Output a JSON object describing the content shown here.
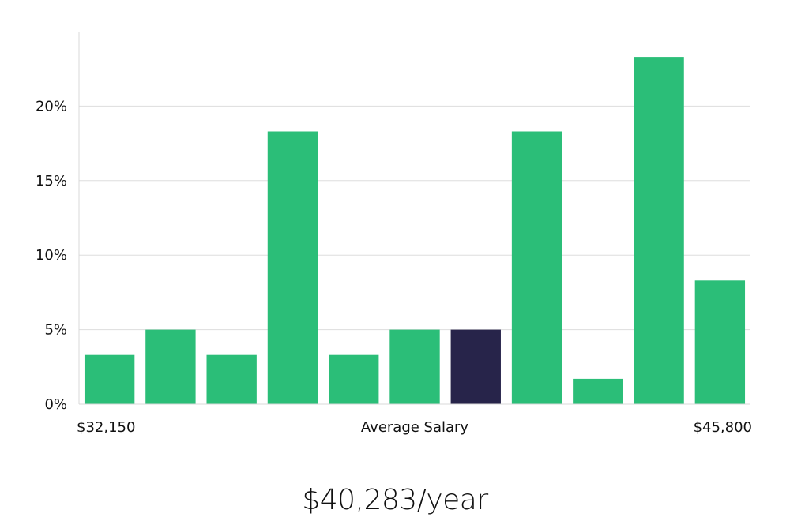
{
  "chart_data": {
    "type": "bar",
    "categories": [
      "1",
      "2",
      "3",
      "4",
      "5",
      "6",
      "7",
      "8",
      "9",
      "10",
      "11"
    ],
    "values": [
      3.3,
      5.0,
      3.3,
      18.3,
      3.3,
      5.0,
      5.0,
      18.3,
      1.7,
      23.3,
      8.3
    ],
    "highlight_index": 6,
    "ylim": [
      0,
      25
    ],
    "yticks": [
      0,
      5,
      10,
      15,
      20
    ],
    "ytick_labels": [
      "0%",
      "5%",
      "10%",
      "15%",
      "20%"
    ],
    "x_min_label": "$32,150",
    "x_max_label": "$45,800",
    "xlabel": "Average Salary",
    "grid": "horizontal",
    "colors": {
      "bar": "#2bbe78",
      "highlight": "#27244a",
      "grid": "#dddddd",
      "axis": "#d8d8d8"
    }
  },
  "summary": {
    "salary_text": "$40,283/year"
  }
}
